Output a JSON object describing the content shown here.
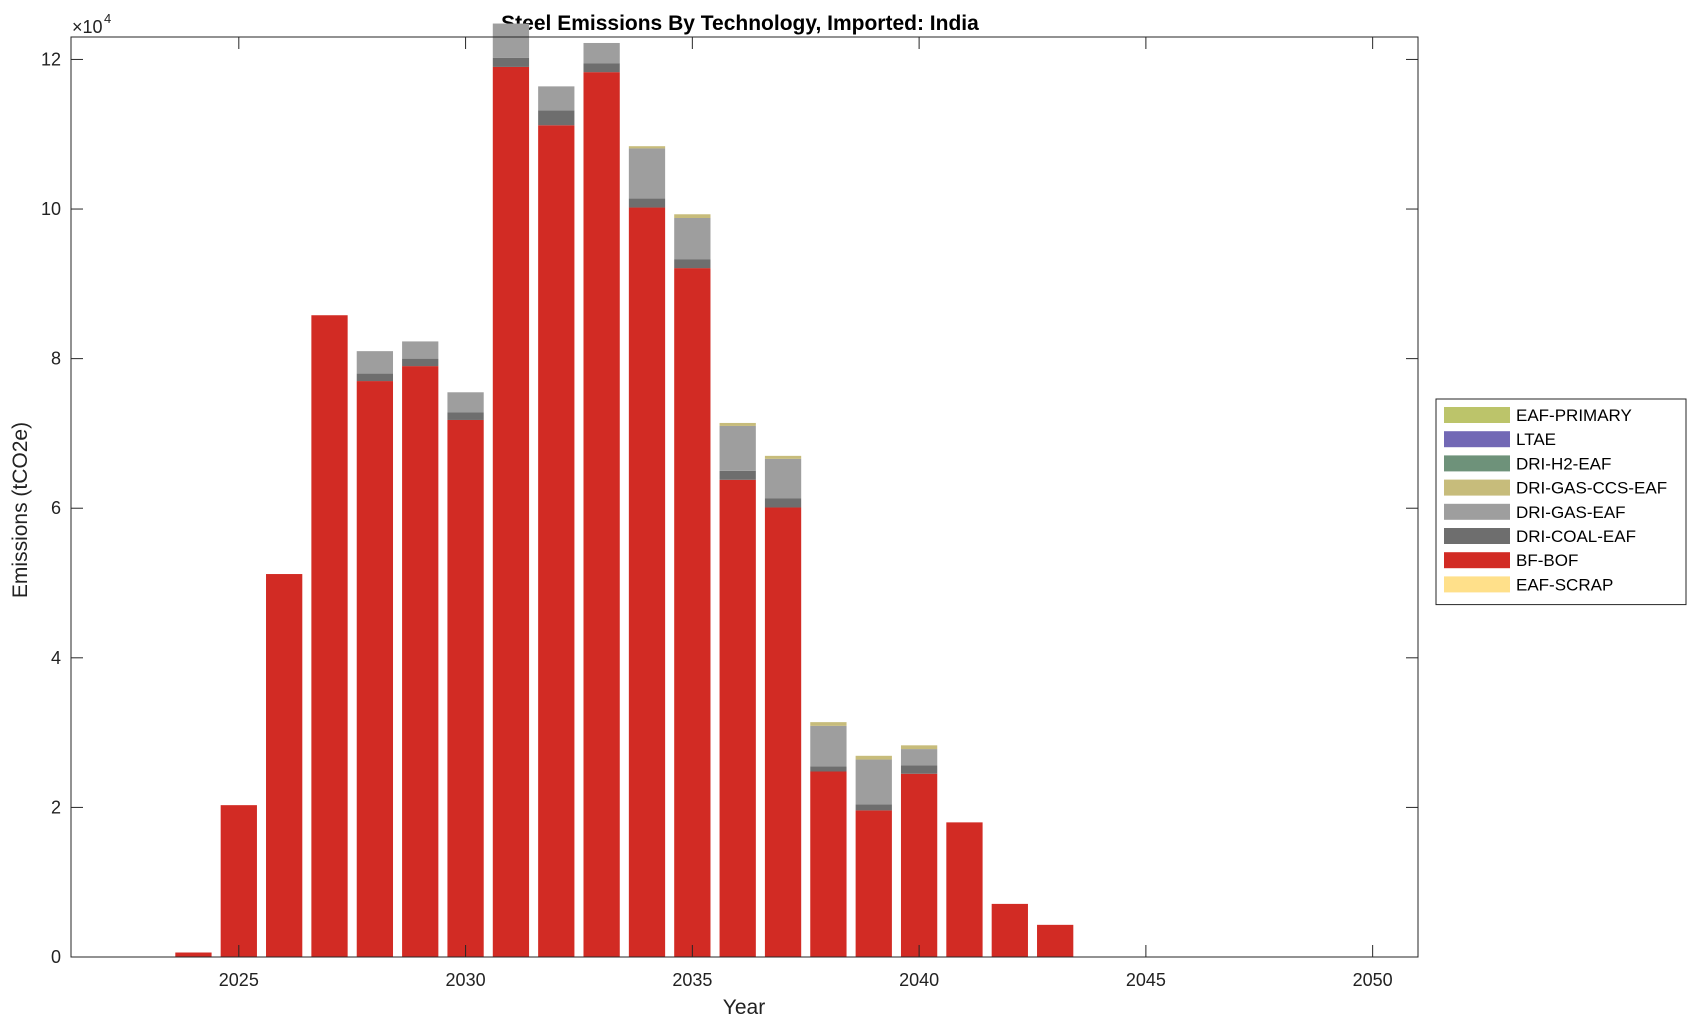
{
  "chart_data": {
    "type": "bar",
    "stacked": true,
    "title": "Steel Emissions By Technology, Imported: India",
    "xlabel": "Year",
    "ylabel": "Emissions (tCO2e)",
    "y_exponent_label": "×10",
    "y_exponent_power": "4",
    "xlim": [
      2021.3,
      2051.0
    ],
    "ylim": [
      0,
      12.3
    ],
    "x_ticks": [
      2025,
      2030,
      2035,
      2040,
      2045,
      2050
    ],
    "x_tick_labels": [
      "2025",
      "2030",
      "2035",
      "2040",
      "2045",
      "2050"
    ],
    "y_ticks": [
      0,
      2,
      4,
      6,
      8,
      10,
      12
    ],
    "y_tick_labels": [
      "0",
      "2",
      "4",
      "6",
      "8",
      "10",
      "12"
    ],
    "grid": false,
    "legend_position": "right",
    "x": [
      2024,
      2025,
      2026,
      2027,
      2028,
      2029,
      2030,
      2031,
      2032,
      2033,
      2034,
      2035,
      2036,
      2037,
      2038,
      2039,
      2040,
      2041,
      2042,
      2043,
      2044,
      2045,
      2046,
      2047,
      2048,
      2049,
      2050
    ],
    "series": [
      {
        "name": "EAF-SCRAP",
        "color": "#FFE08A",
        "values": [
          0,
          0,
          0,
          0,
          0,
          0,
          0,
          0,
          0,
          0,
          0,
          0,
          0,
          0,
          0,
          0,
          0,
          0,
          0,
          0,
          0,
          0,
          0,
          0,
          0,
          0,
          0
        ]
      },
      {
        "name": "BF-BOF",
        "color": "#D22B24",
        "values": [
          0.06,
          2.03,
          5.12,
          8.58,
          7.7,
          7.9,
          7.18,
          11.9,
          11.12,
          11.83,
          10.02,
          9.21,
          6.38,
          6.01,
          2.48,
          1.96,
          2.45,
          1.8,
          0.71,
          0.43,
          0,
          0,
          0,
          0,
          0,
          0,
          0
        ]
      },
      {
        "name": "DRI-COAL-EAF",
        "color": "#6E6E6E",
        "values": [
          0,
          0,
          0,
          0,
          0.1,
          0.1,
          0.1,
          0.12,
          0.2,
          0.12,
          0.12,
          0.12,
          0.12,
          0.12,
          0.07,
          0.08,
          0.11,
          0,
          0,
          0,
          0,
          0,
          0,
          0,
          0,
          0,
          0
        ]
      },
      {
        "name": "DRI-GAS-EAF",
        "color": "#9E9E9E",
        "values": [
          0,
          0,
          0,
          0,
          0.3,
          0.23,
          0.27,
          0.46,
          0.32,
          0.27,
          0.67,
          0.55,
          0.6,
          0.53,
          0.54,
          0.6,
          0.22,
          0,
          0,
          0,
          0,
          0,
          0,
          0,
          0,
          0,
          0
        ]
      },
      {
        "name": "DRI-GAS-CCS-EAF",
        "color": "#C7BC7B",
        "values": [
          0,
          0,
          0,
          0,
          0,
          0,
          0,
          0,
          0,
          0,
          0.03,
          0.05,
          0.04,
          0.04,
          0.05,
          0.05,
          0.05,
          0,
          0,
          0,
          0,
          0,
          0,
          0,
          0,
          0,
          0
        ]
      },
      {
        "name": "DRI-H2-EAF",
        "color": "#6E927A",
        "values": [
          0,
          0,
          0,
          0,
          0,
          0,
          0,
          0,
          0,
          0,
          0,
          0,
          0,
          0,
          0,
          0,
          0,
          0,
          0,
          0,
          0,
          0,
          0,
          0,
          0,
          0,
          0
        ]
      },
      {
        "name": "LTAE",
        "color": "#7268B5",
        "values": [
          0,
          0,
          0,
          0,
          0,
          0,
          0,
          0,
          0,
          0,
          0,
          0,
          0,
          0,
          0,
          0,
          0,
          0,
          0,
          0,
          0,
          0,
          0,
          0,
          0,
          0,
          0
        ]
      },
      {
        "name": "EAF-PRIMARY",
        "color": "#BCC46A",
        "values": [
          0,
          0,
          0,
          0,
          0,
          0,
          0,
          0,
          0,
          0,
          0,
          0,
          0,
          0,
          0,
          0,
          0,
          0,
          0,
          0,
          0,
          0,
          0,
          0,
          0,
          0,
          0
        ]
      }
    ],
    "legend_order": [
      "EAF-PRIMARY",
      "LTAE",
      "DRI-H2-EAF",
      "DRI-GAS-CCS-EAF",
      "DRI-GAS-EAF",
      "DRI-COAL-EAF",
      "BF-BOF",
      "EAF-SCRAP"
    ]
  }
}
